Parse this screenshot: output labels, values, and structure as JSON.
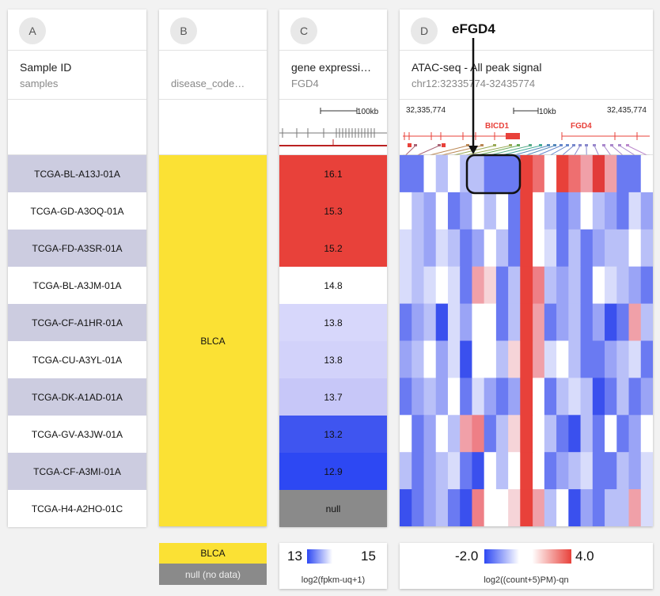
{
  "columns": {
    "a": {
      "letter": "A",
      "title": "Sample ID",
      "subtitle": "samples"
    },
    "b": {
      "letter": "B",
      "title": "",
      "subtitle": "disease_code…"
    },
    "c": {
      "letter": "C",
      "title": "gene expressi…",
      "subtitle": "FGD4",
      "scale": "100kb"
    },
    "d": {
      "letter": "D",
      "title": "ATAC-seq - All peak signal",
      "subtitle": "chr12:32335774-32435774",
      "pos_start": "32,335,774",
      "pos_end": "32,435,774",
      "scale": "10kb",
      "gene1": "BICD1",
      "gene2": "FGD4"
    }
  },
  "annotation": {
    "label": "eFGD4"
  },
  "samples": [
    {
      "id": "TCGA-BL-A13J-01A",
      "expr": "16.1",
      "expr_color": "#e8413a"
    },
    {
      "id": "TCGA-GD-A3OQ-01A",
      "expr": "15.3",
      "expr_color": "#e8413a"
    },
    {
      "id": "TCGA-FD-A3SR-01A",
      "expr": "15.2",
      "expr_color": "#e8413a"
    },
    {
      "id": "TCGA-BL-A3JM-01A",
      "expr": "14.8",
      "expr_color": "#ffffff"
    },
    {
      "id": "TCGA-CF-A1HR-01A",
      "expr": "13.8",
      "expr_color": "#d7d7fb"
    },
    {
      "id": "TCGA-CU-A3YL-01A",
      "expr": "13.8",
      "expr_color": "#d2d2fa"
    },
    {
      "id": "TCGA-DK-A1AD-01A",
      "expr": "13.7",
      "expr_color": "#c7c7f8"
    },
    {
      "id": "TCGA-GV-A3JW-01A",
      "expr": "13.2",
      "expr_color": "#3f55f0"
    },
    {
      "id": "TCGA-CF-A3MI-01A",
      "expr": "12.9",
      "expr_color": "#2d48f3"
    },
    {
      "id": "TCGA-H4-A2HO-01C",
      "expr": "null",
      "expr_color": "#8a8a8a"
    }
  ],
  "disease": {
    "value": "BLCA",
    "color": "#fbe134"
  },
  "legends": {
    "b": {
      "item1": "BLCA",
      "item2": "null (no data)",
      "color1": "#fbe134",
      "color2": "#8a8a8a"
    },
    "c": {
      "min": "13",
      "max": "15",
      "unit": "log2(fpkm-uq+1)"
    },
    "d": {
      "min": "-2.0",
      "max": "4.0",
      "unit": "log2((count+5)PM)-qn"
    }
  },
  "heatmap_rows": [
    "bbfdwddbbbbawHaprp",
    "wdmwbmwdwbHwdbmwdmbcm",
    "cdmcdbmwdbHwcbdbmddwd",
    "cdcwcbplbdHqdmdbwcdmb",
    "bmdBcmwwbdHpbmdbmBbpd",
    "mdwmcBwwdlHpcwdbbmdcb",
    "bmdmwbcmbmHwbdcdBbdbm",
    "wbmwdpqbdlHwdbBdbwbmw",
    "dbmdcbBwdwHwbmdcbbdmc",
    "BbmdbBqwwlHpdwBmbddpc"
  ]
}
